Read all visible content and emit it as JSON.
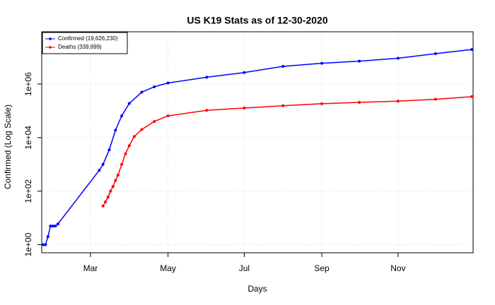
{
  "chart_data": {
    "type": "line",
    "title": "US K19 Stats as of 12-30-2020",
    "x_label": "Days",
    "y_label": "Confirmed (Log Scale)",
    "log_y": true,
    "grid": true,
    "legend": "top-left",
    "xlim": [
      21,
      366
    ],
    "xticks": [
      {
        "value": 60,
        "label": "Mar"
      },
      {
        "value": 122,
        "label": "May"
      },
      {
        "value": 183,
        "label": "Jul"
      },
      {
        "value": 245,
        "label": "Sep"
      },
      {
        "value": 306,
        "label": "Nov"
      }
    ],
    "ylim": [
      0.5,
      90000000
    ],
    "yticks": [
      {
        "value": 1,
        "label": "1e+00"
      },
      {
        "value": 100,
        "label": "1e+02"
      },
      {
        "value": 10000,
        "label": "1e+04"
      },
      {
        "value": 1000000,
        "label": "1e+06"
      }
    ],
    "series": [
      {
        "name": "Confirmed (19,626,230)",
        "color": "#0000ff",
        "x": [
          22,
          24,
          26,
          28,
          30,
          32,
          34,
          67,
          70,
          75,
          80,
          85,
          91,
          101,
          111,
          122,
          153,
          183,
          214,
          245,
          275,
          306,
          336,
          365
        ],
        "values": [
          1,
          1,
          2,
          5,
          5,
          5,
          6,
          600,
          1000,
          3500,
          19000,
          65000,
          190000,
          500000,
          790000,
          1100000,
          1800000,
          2700000,
          4600000,
          6000000,
          7200000,
          9200000,
          13700000,
          19626230
        ]
      },
      {
        "name": "Deaths (339,899)",
        "color": "#ff0000",
        "x": [
          70,
          72,
          74,
          76,
          78,
          80,
          82,
          85,
          88,
          91,
          95,
          101,
          111,
          122,
          153,
          183,
          214,
          245,
          275,
          306,
          336,
          365
        ],
        "values": [
          28,
          40,
          60,
          100,
          150,
          250,
          400,
          1000,
          2500,
          5000,
          11000,
          20000,
          40000,
          65000,
          105000,
          128000,
          155000,
          185000,
          208000,
          230000,
          270000,
          339899
        ]
      }
    ]
  }
}
